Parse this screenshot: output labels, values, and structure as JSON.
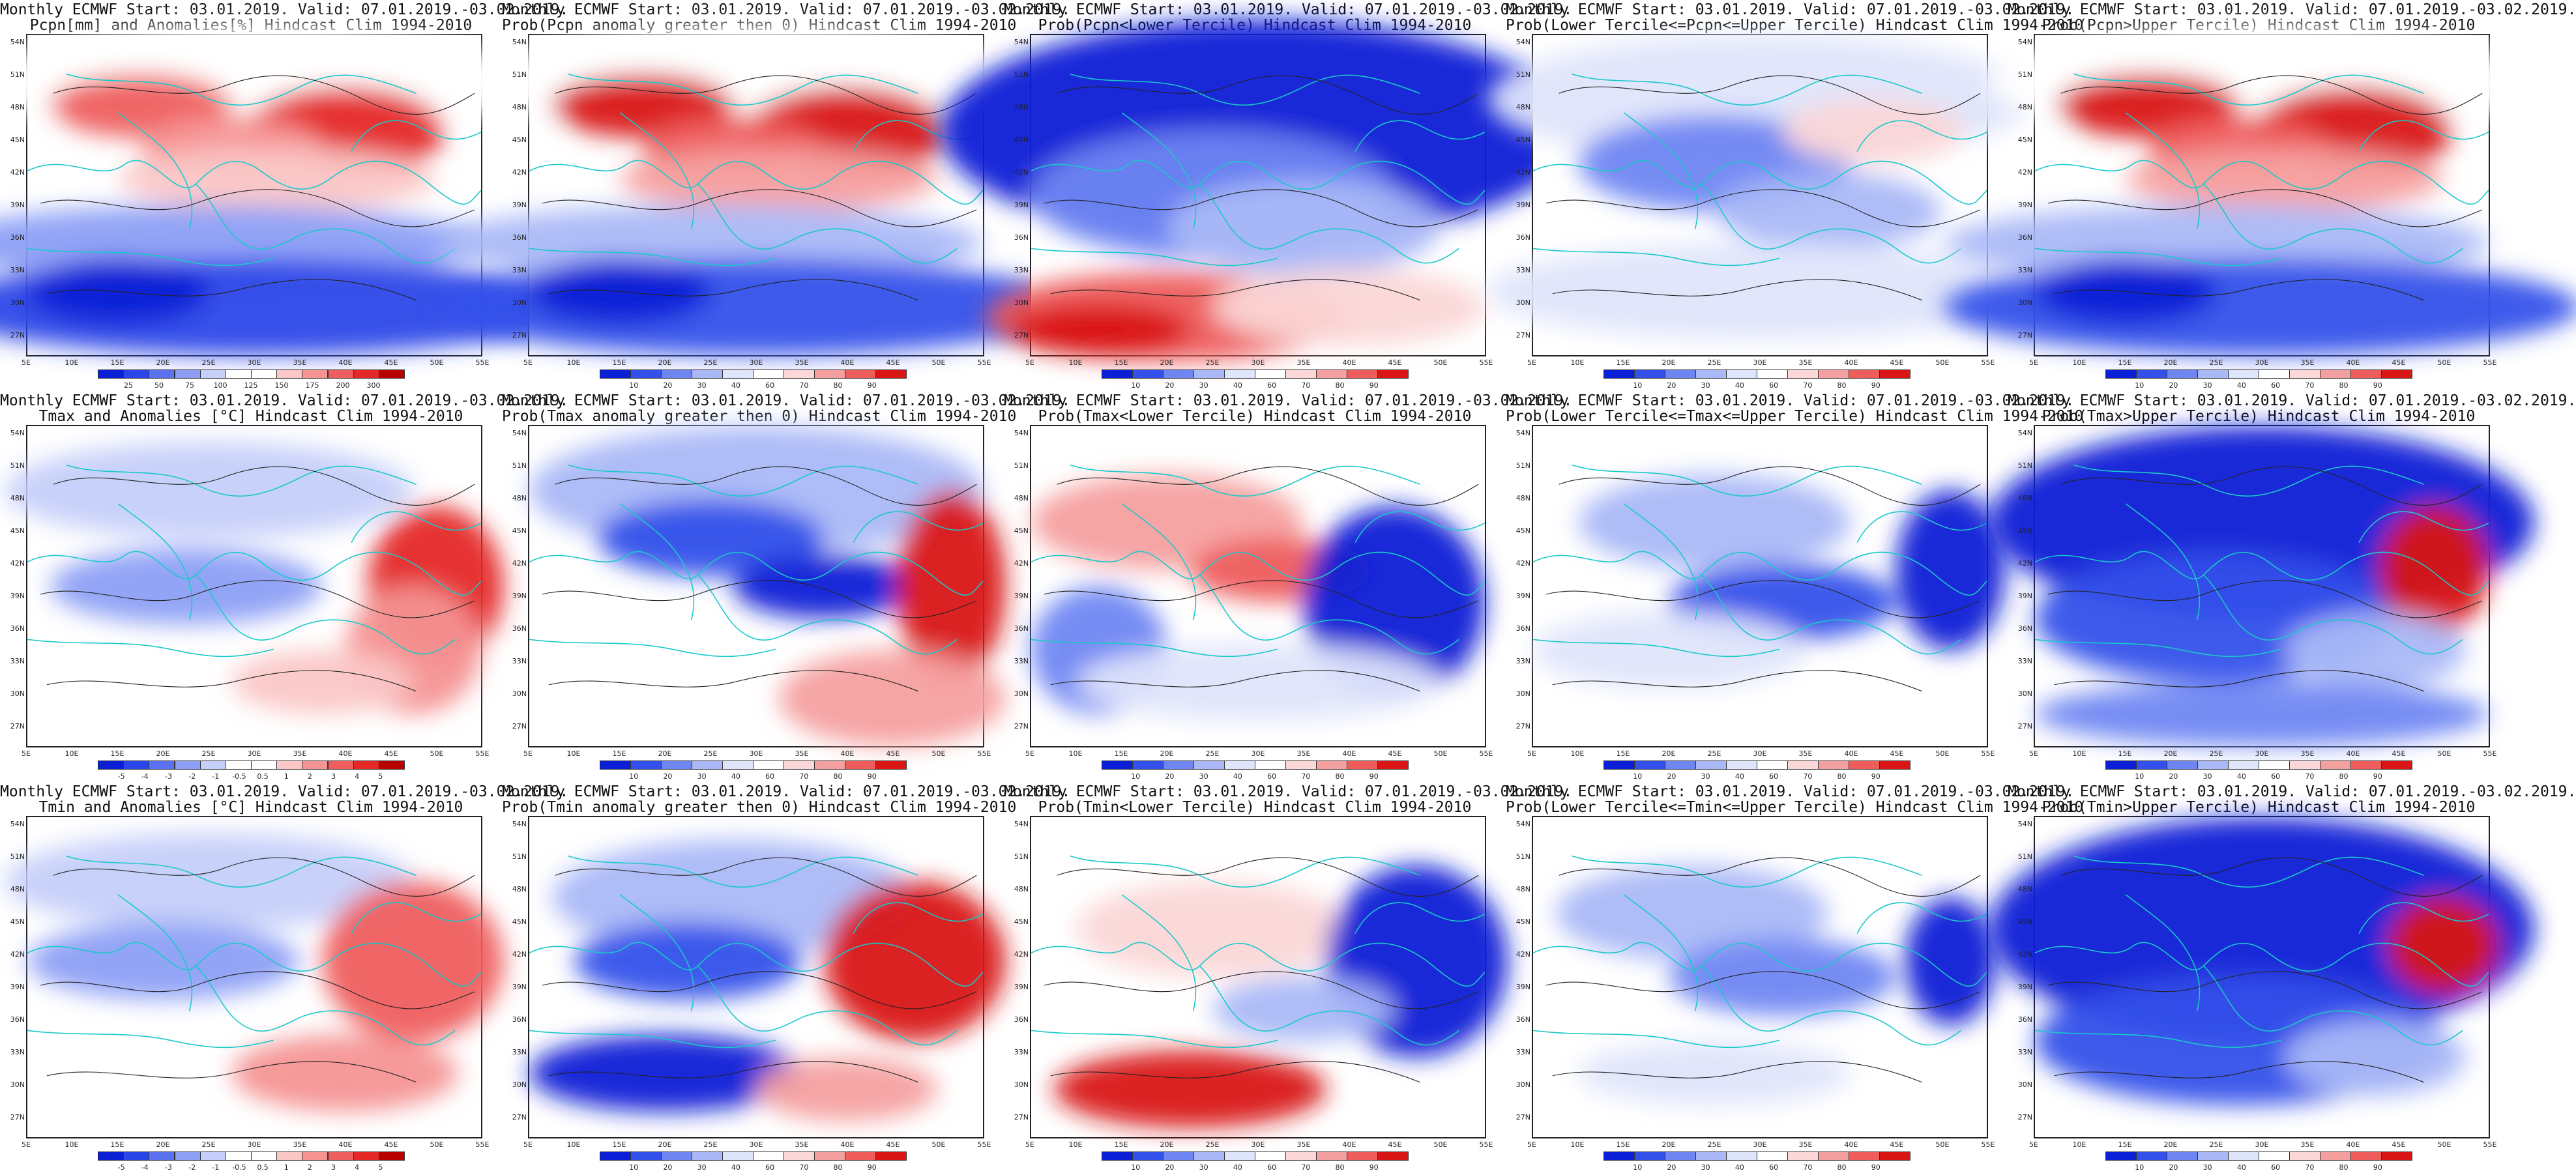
{
  "palettes": {
    "anomaly": [
      "#0a1fd6",
      "#2a46e8",
      "#5a72f0",
      "#8c9ff5",
      "#c5cff9",
      "#ffffff",
      "#ffffff",
      "#fbc7c7",
      "#f69393",
      "#ef5e5e",
      "#e52727",
      "#b80000"
    ],
    "probability": [
      "#0a1fd6",
      "#3351ea",
      "#6f86f2",
      "#aab8f7",
      "#dfe5fb",
      "#ffffff",
      "#fbd7d7",
      "#f5a0a0",
      "#ee5c5c",
      "#d91515"
    ]
  },
  "colorbars": {
    "pcpn": [
      "25",
      "50",
      "75",
      "100",
      "125",
      "150",
      "175",
      "200",
      "300"
    ],
    "prob": [
      "10",
      "20",
      "30",
      "40",
      "60",
      "70",
      "80",
      "90"
    ],
    "temp": [
      "-5",
      "-4",
      "-3",
      "-2",
      "-1",
      "-0.5",
      "0.5",
      "1",
      "2",
      "3",
      "4",
      "5"
    ]
  },
  "lat_labels": [
    "54N",
    "51N",
    "48N",
    "45N",
    "42N",
    "39N",
    "36N",
    "33N",
    "30N",
    "27N"
  ],
  "lon_labels": [
    "5E",
    "10E",
    "15E",
    "20E",
    "25E",
    "30E",
    "35E",
    "40E",
    "45E",
    "50E",
    "55E"
  ],
  "map_colors": {
    "coast": "#19c9c9",
    "contour": "#222222"
  },
  "panels": [
    {
      "title1": "Monthly ECMWF Start: 03.01.2019. Valid: 07.01.2019.-03.02.2019.",
      "title2": "Pcpn[mm] and Anomalies[%] Hindcast Clim 1994-2010",
      "palette": "anomaly",
      "bar": "pcpn",
      "pattern": "pcpn_anom"
    },
    {
      "title1": "Monthly ECMWF Start: 03.01.2019. Valid: 07.01.2019.-03.02.2019.",
      "title2": "Prob(Pcpn anomaly greater then 0) Hindcast Clim 1994-2010",
      "palette": "probability",
      "bar": "prob",
      "pattern": "pcpn_anom"
    },
    {
      "title1": "Monthly ECMWF Start: 03.01.2019. Valid: 07.01.2019.-03.02.2019.",
      "title2": "Prob(Pcpn<Lower Tercile) Hindcast Clim 1994-2010",
      "palette": "probability",
      "bar": "prob",
      "pattern": "pcpn_lower"
    },
    {
      "title1": "Monthly ECMWF Start: 03.01.2019. Valid: 07.01.2019.-03.02.2019.",
      "title2": "Prob(Lower Tercile<=Pcpn<=Upper Tercile) Hindcast Clim 1994-2010",
      "palette": "probability",
      "bar": "prob",
      "pattern": "pcpn_mid"
    },
    {
      "title1": "Monthly ECMWF Start: 03.01.2019. Valid: 07.01.2019.-03.02.2019.",
      "title2": "Prob(Pcpn>Upper Tercile) Hindcast Clim 1994-2010",
      "palette": "probability",
      "bar": "prob",
      "pattern": "pcpn_anom"
    },
    {
      "title1": "Monthly ECMWF Start: 03.01.2019. Valid: 07.01.2019.-03.02.2019.",
      "title2": "Tmax and Anomalies [°C] Hindcast Clim 1994-2010",
      "palette": "anomaly",
      "bar": "temp",
      "pattern": "tmax_anom"
    },
    {
      "title1": "Monthly ECMWF Start: 03.01.2019. Valid: 07.01.2019.-03.02.2019.",
      "title2": "Prob(Tmax anomaly greater then 0) Hindcast Clim 1994-2010",
      "palette": "probability",
      "bar": "prob",
      "pattern": "tmax_prob"
    },
    {
      "title1": "Monthly ECMWF Start: 03.01.2019. Valid: 07.01.2019.-03.02.2019.",
      "title2": "Prob(Tmax<Lower Tercile) Hindcast Clim 1994-2010",
      "palette": "probability",
      "bar": "prob",
      "pattern": "tmax_lower"
    },
    {
      "title1": "Monthly ECMWF Start: 03.01.2019. Valid: 07.01.2019.-03.02.2019.",
      "title2": "Prob(Lower Tercile<=Tmax<=Upper Tercile) Hindcast Clim 1994-2010",
      "palette": "probability",
      "bar": "prob",
      "pattern": "tmax_mid"
    },
    {
      "title1": "Monthly ECMWF Start: 03.01.2019. Valid: 07.01.2019.-03.02.2019.",
      "title2": "Prob(Tmax>Upper Tercile) Hindcast Clim 1994-2010",
      "palette": "probability",
      "bar": "prob",
      "pattern": "tmax_upper"
    },
    {
      "title1": "Monthly ECMWF Start: 03.01.2019. Valid: 07.01.2019.-03.02.2019.",
      "title2": "Tmin and Anomalies [°C] Hindcast Clim 1994-2010",
      "palette": "anomaly",
      "bar": "temp",
      "pattern": "tmin_anom"
    },
    {
      "title1": "Monthly ECMWF Start: 03.01.2019. Valid: 07.01.2019.-03.02.2019.",
      "title2": "Prob(Tmin anomaly greater then 0) Hindcast Clim 1994-2010",
      "palette": "probability",
      "bar": "prob",
      "pattern": "tmin_prob"
    },
    {
      "title1": "Monthly ECMWF Start: 03.01.2019. Valid: 07.01.2019.-03.02.2019.",
      "title2": "Prob(Tmin<Lower Tercile) Hindcast Clim 1994-2010",
      "palette": "probability",
      "bar": "prob",
      "pattern": "tmin_lower"
    },
    {
      "title1": "Monthly ECMWF Start: 03.01.2019. Valid: 07.01.2019.-03.02.2019.",
      "title2": "Prob(Lower Tercile<=Tmin<=Upper Tercile) Hindcast Clim 1994-2010",
      "palette": "probability",
      "bar": "prob",
      "pattern": "tmin_mid"
    },
    {
      "title1": "Monthly ECMWF Start: 03.01.2019. Valid: 07.01.2019.-03.02.2019.",
      "title2": "Prob(Tmin>Upper Tercile) Hindcast Clim 1994-2010",
      "palette": "probability",
      "bar": "prob",
      "pattern": "tmin_upper"
    }
  ]
}
